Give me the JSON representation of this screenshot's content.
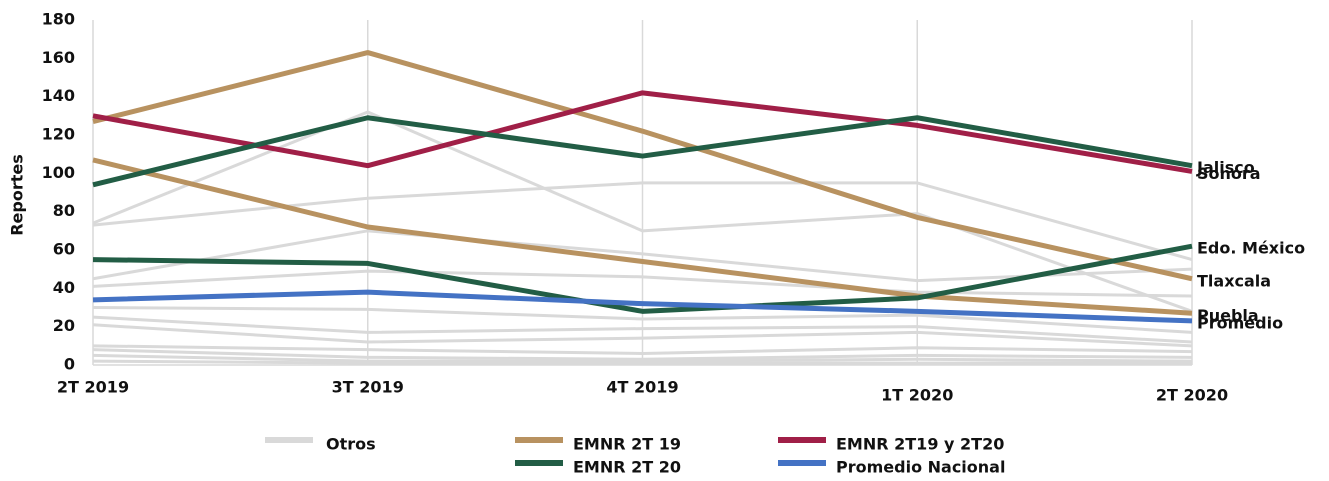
{
  "chart_data": {
    "type": "line",
    "y_label": "Reportes",
    "categories": [
      "2T 2019",
      "3T 2019",
      "4T 2019",
      "1T 2020",
      "2T 2020"
    ],
    "ylim": [
      0,
      180
    ],
    "yticks": [
      0,
      20,
      40,
      60,
      80,
      100,
      120,
      140,
      160,
      180
    ],
    "grid": "vertical",
    "other_lines": {
      "name": "Otros",
      "color": "#d9d9d9",
      "lines": [
        [
          73,
          87,
          95,
          95,
          55
        ],
        [
          74,
          132,
          70,
          79,
          28
        ],
        [
          45,
          70,
          58,
          44,
          50
        ],
        [
          41,
          49,
          46,
          38,
          36
        ],
        [
          30,
          29,
          24,
          26,
          17
        ],
        [
          25,
          17,
          19,
          20,
          12
        ],
        [
          21,
          12,
          14,
          17,
          10
        ],
        [
          10,
          8,
          6,
          9,
          7
        ],
        [
          8,
          4,
          3,
          5,
          4
        ],
        [
          5,
          2,
          2,
          3,
          2
        ],
        [
          2,
          1,
          1,
          1,
          1
        ]
      ]
    },
    "series": [
      {
        "name": "EMNR 2T 19",
        "color": "#b89260",
        "values": [
          127,
          163,
          122,
          77,
          45
        ],
        "end_label": "Tlaxcala"
      },
      {
        "name": "EMNR 2T 19",
        "color": "#b89260",
        "values": [
          107,
          72,
          54,
          36,
          27
        ],
        "end_label": "Puebla"
      },
      {
        "name": "EMNR 2T19 y 2T20",
        "color": "#a01f47",
        "values": [
          130,
          104,
          142,
          125,
          101
        ],
        "end_label": "Sonora"
      },
      {
        "name": "EMNR 2T 20",
        "color": "#225d45",
        "values": [
          94,
          129,
          109,
          129,
          104
        ],
        "end_label": "Jalisco"
      },
      {
        "name": "EMNR 2T 20",
        "color": "#225d45",
        "values": [
          55,
          53,
          28,
          35,
          62
        ],
        "end_label": "Edo. México"
      },
      {
        "name": "Promedio Nacional",
        "color": "#4472c4",
        "values": [
          34,
          38,
          32,
          28,
          23
        ],
        "end_label": "Promedio"
      }
    ]
  }
}
